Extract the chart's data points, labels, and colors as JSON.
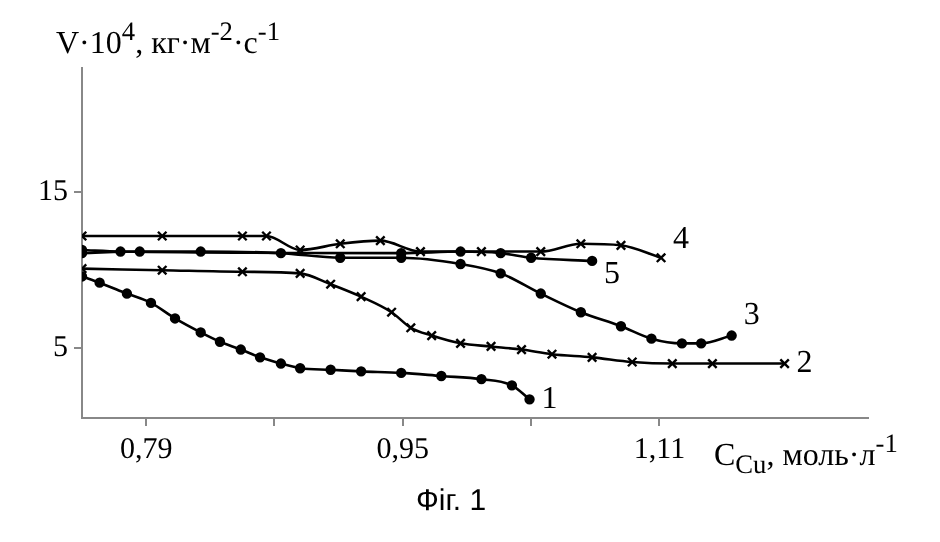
{
  "chart_data": {
    "type": "line",
    "xlabel": "C$_{Cu}$, моль·л$^{-1}$",
    "ylabel": "V·10$^{4}$, кг·м$^{-2}$·с$^{-1}$",
    "xlim": [
      0.75,
      1.24
    ],
    "xticks": [
      {
        "value": 0.79,
        "label": "0,79"
      },
      {
        "value": 0.87,
        "label": null
      },
      {
        "value": 0.95,
        "label": "0,95"
      },
      {
        "value": 1.03,
        "label": null
      },
      {
        "value": 1.11,
        "label": "1,11"
      }
    ],
    "ylim": [
      0.5,
      23
    ],
    "yticks": [
      5,
      15
    ],
    "grid": false,
    "legend": false,
    "line_style": "solid",
    "series": [
      {
        "name": "1",
        "color": "#000000",
        "marker": "circle",
        "x": [
          0.75,
          0.761,
          0.778,
          0.793,
          0.808,
          0.824,
          0.836,
          0.849,
          0.861,
          0.874,
          0.886,
          0.905,
          0.924,
          0.949,
          0.974,
          0.999,
          1.018,
          1.029
        ],
        "values": [
          9.6,
          9.2,
          8.5,
          7.9,
          6.9,
          6.0,
          5.4,
          4.9,
          4.4,
          4.0,
          3.7,
          3.6,
          3.5,
          3.4,
          3.2,
          3.0,
          2.6,
          1.7
        ]
      },
      {
        "name": "2",
        "color": "#000000",
        "marker": "cross",
        "x": [
          0.75,
          0.8,
          0.85,
          0.886,
          0.905,
          0.924,
          0.943,
          0.955,
          0.968,
          0.986,
          1.005,
          1.024,
          1.043,
          1.068,
          1.093,
          1.118,
          1.143,
          1.188
        ],
        "values": [
          10.1,
          10.0,
          9.9,
          9.8,
          9.1,
          8.3,
          7.3,
          6.3,
          5.8,
          5.3,
          5.1,
          4.9,
          4.6,
          4.4,
          4.1,
          4.0,
          4.0,
          4.0
        ]
      },
      {
        "name": "3",
        "color": "#000000",
        "marker": "circle",
        "x": [
          0.75,
          0.786,
          0.824,
          0.874,
          0.911,
          0.949,
          0.986,
          1.011,
          1.036,
          1.061,
          1.086,
          1.105,
          1.124,
          1.136,
          1.155
        ],
        "values": [
          11.1,
          11.2,
          11.2,
          11.1,
          10.8,
          10.8,
          10.4,
          9.8,
          8.5,
          7.3,
          6.4,
          5.6,
          5.3,
          5.3,
          5.8
        ]
      },
      {
        "name": "4",
        "color": "#000000",
        "marker": "cross",
        "x": [
          0.75,
          0.8,
          0.85,
          0.865,
          0.886,
          0.911,
          0.936,
          0.961,
          0.999,
          1.036,
          1.061,
          1.086,
          1.111
        ],
        "values": [
          12.2,
          12.2,
          12.2,
          12.2,
          11.3,
          11.7,
          11.9,
          11.2,
          11.2,
          11.2,
          11.7,
          11.6,
          10.8
        ]
      },
      {
        "name": "5",
        "color": "#000000",
        "marker": "circle",
        "x": [
          0.75,
          0.774,
          0.949,
          0.986,
          1.011,
          1.03,
          1.068
        ],
        "values": [
          11.3,
          11.2,
          11.1,
          11.2,
          11.1,
          10.8,
          10.6
        ]
      }
    ],
    "annotations": [
      "Фіг. 1"
    ]
  }
}
